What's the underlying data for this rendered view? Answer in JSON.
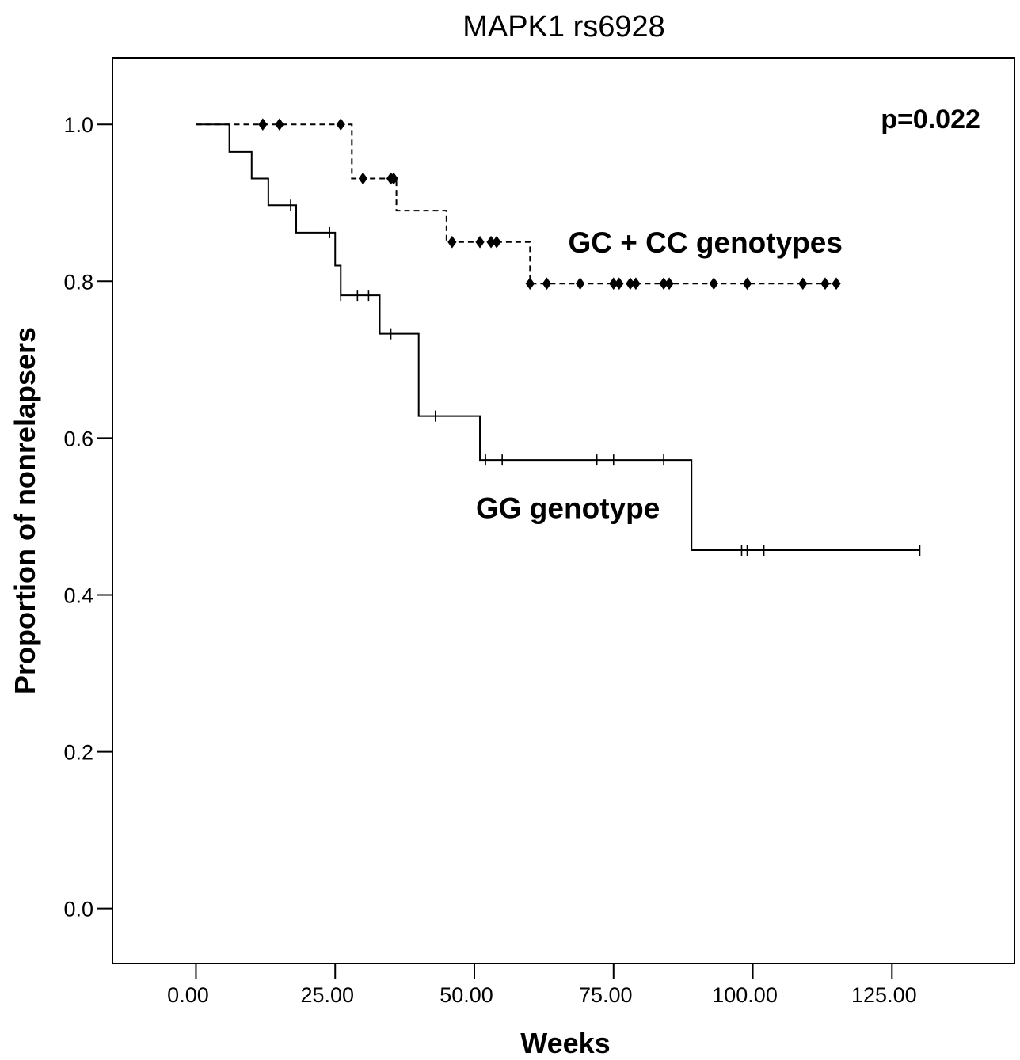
{
  "chart_data": {
    "type": "line",
    "title": "MAPK1 rs6928",
    "xlabel": "Weeks",
    "ylabel": "Proportion of nonrelapsers",
    "xlim": [
      -15,
      147
    ],
    "ylim": [
      -0.07,
      1.085
    ],
    "x_ticks": [
      0,
      25,
      50,
      75,
      100,
      125
    ],
    "x_tick_labels": [
      "0.00",
      "25.00",
      "50.00",
      "75.00",
      "100.00",
      "125.00"
    ],
    "y_ticks": [
      0,
      0.2,
      0.4,
      0.6,
      0.8,
      1.0
    ],
    "y_tick_labels": [
      "0.0",
      "0.2",
      "0.4",
      "0.6",
      "0.8",
      "1.0"
    ],
    "grid": false,
    "annotations": [
      {
        "text": "p=0.022",
        "x": 144,
        "y": 1.0
      },
      {
        "text": "GC + CC genotypes",
        "x": 66,
        "y": 0.85
      },
      {
        "text": "GG genotype",
        "x": 49,
        "y": 0.51
      }
    ],
    "series": [
      {
        "name": "GC + CC genotypes",
        "style": "dashed",
        "color": "#000000",
        "steps": [
          [
            0,
            1.0
          ],
          [
            26,
            1.0
          ],
          [
            28,
            0.931
          ],
          [
            36,
            0.89
          ],
          [
            45,
            0.85
          ],
          [
            60,
            0.797
          ],
          [
            115,
            0.797
          ]
        ],
        "censored": [
          [
            12,
            1.0
          ],
          [
            15,
            1.0
          ],
          [
            26,
            1.0
          ],
          [
            30,
            0.931
          ],
          [
            35,
            0.931
          ],
          [
            35.5,
            0.931
          ],
          [
            46,
            0.85
          ],
          [
            51,
            0.85
          ],
          [
            53,
            0.85
          ],
          [
            54,
            0.85
          ],
          [
            60,
            0.797
          ],
          [
            63,
            0.797
          ],
          [
            69,
            0.797
          ],
          [
            75,
            0.797
          ],
          [
            76,
            0.797
          ],
          [
            78,
            0.797
          ],
          [
            79,
            0.797
          ],
          [
            84,
            0.797
          ],
          [
            85,
            0.797
          ],
          [
            93,
            0.797
          ],
          [
            99,
            0.797
          ],
          [
            109,
            0.797
          ],
          [
            113,
            0.797
          ],
          [
            115,
            0.797
          ]
        ]
      },
      {
        "name": "GG genotype",
        "style": "solid",
        "color": "#000000",
        "steps": [
          [
            0,
            1.0
          ],
          [
            6,
            0.965
          ],
          [
            10,
            0.931
          ],
          [
            13,
            0.897
          ],
          [
            18,
            0.862
          ],
          [
            25,
            0.82
          ],
          [
            26,
            0.782
          ],
          [
            33,
            0.733
          ],
          [
            40,
            0.628
          ],
          [
            51,
            0.572
          ],
          [
            89,
            0.457
          ],
          [
            130,
            0.457
          ]
        ],
        "censored": [
          [
            17,
            0.897
          ],
          [
            24,
            0.862
          ],
          [
            26,
            0.782
          ],
          [
            29,
            0.782
          ],
          [
            31,
            0.782
          ],
          [
            35,
            0.733
          ],
          [
            43,
            0.628
          ],
          [
            52,
            0.572
          ],
          [
            55,
            0.572
          ],
          [
            72,
            0.572
          ],
          [
            75,
            0.572
          ],
          [
            84,
            0.572
          ],
          [
            98,
            0.457
          ],
          [
            99,
            0.457
          ],
          [
            102,
            0.457
          ],
          [
            130,
            0.457
          ]
        ]
      }
    ]
  }
}
